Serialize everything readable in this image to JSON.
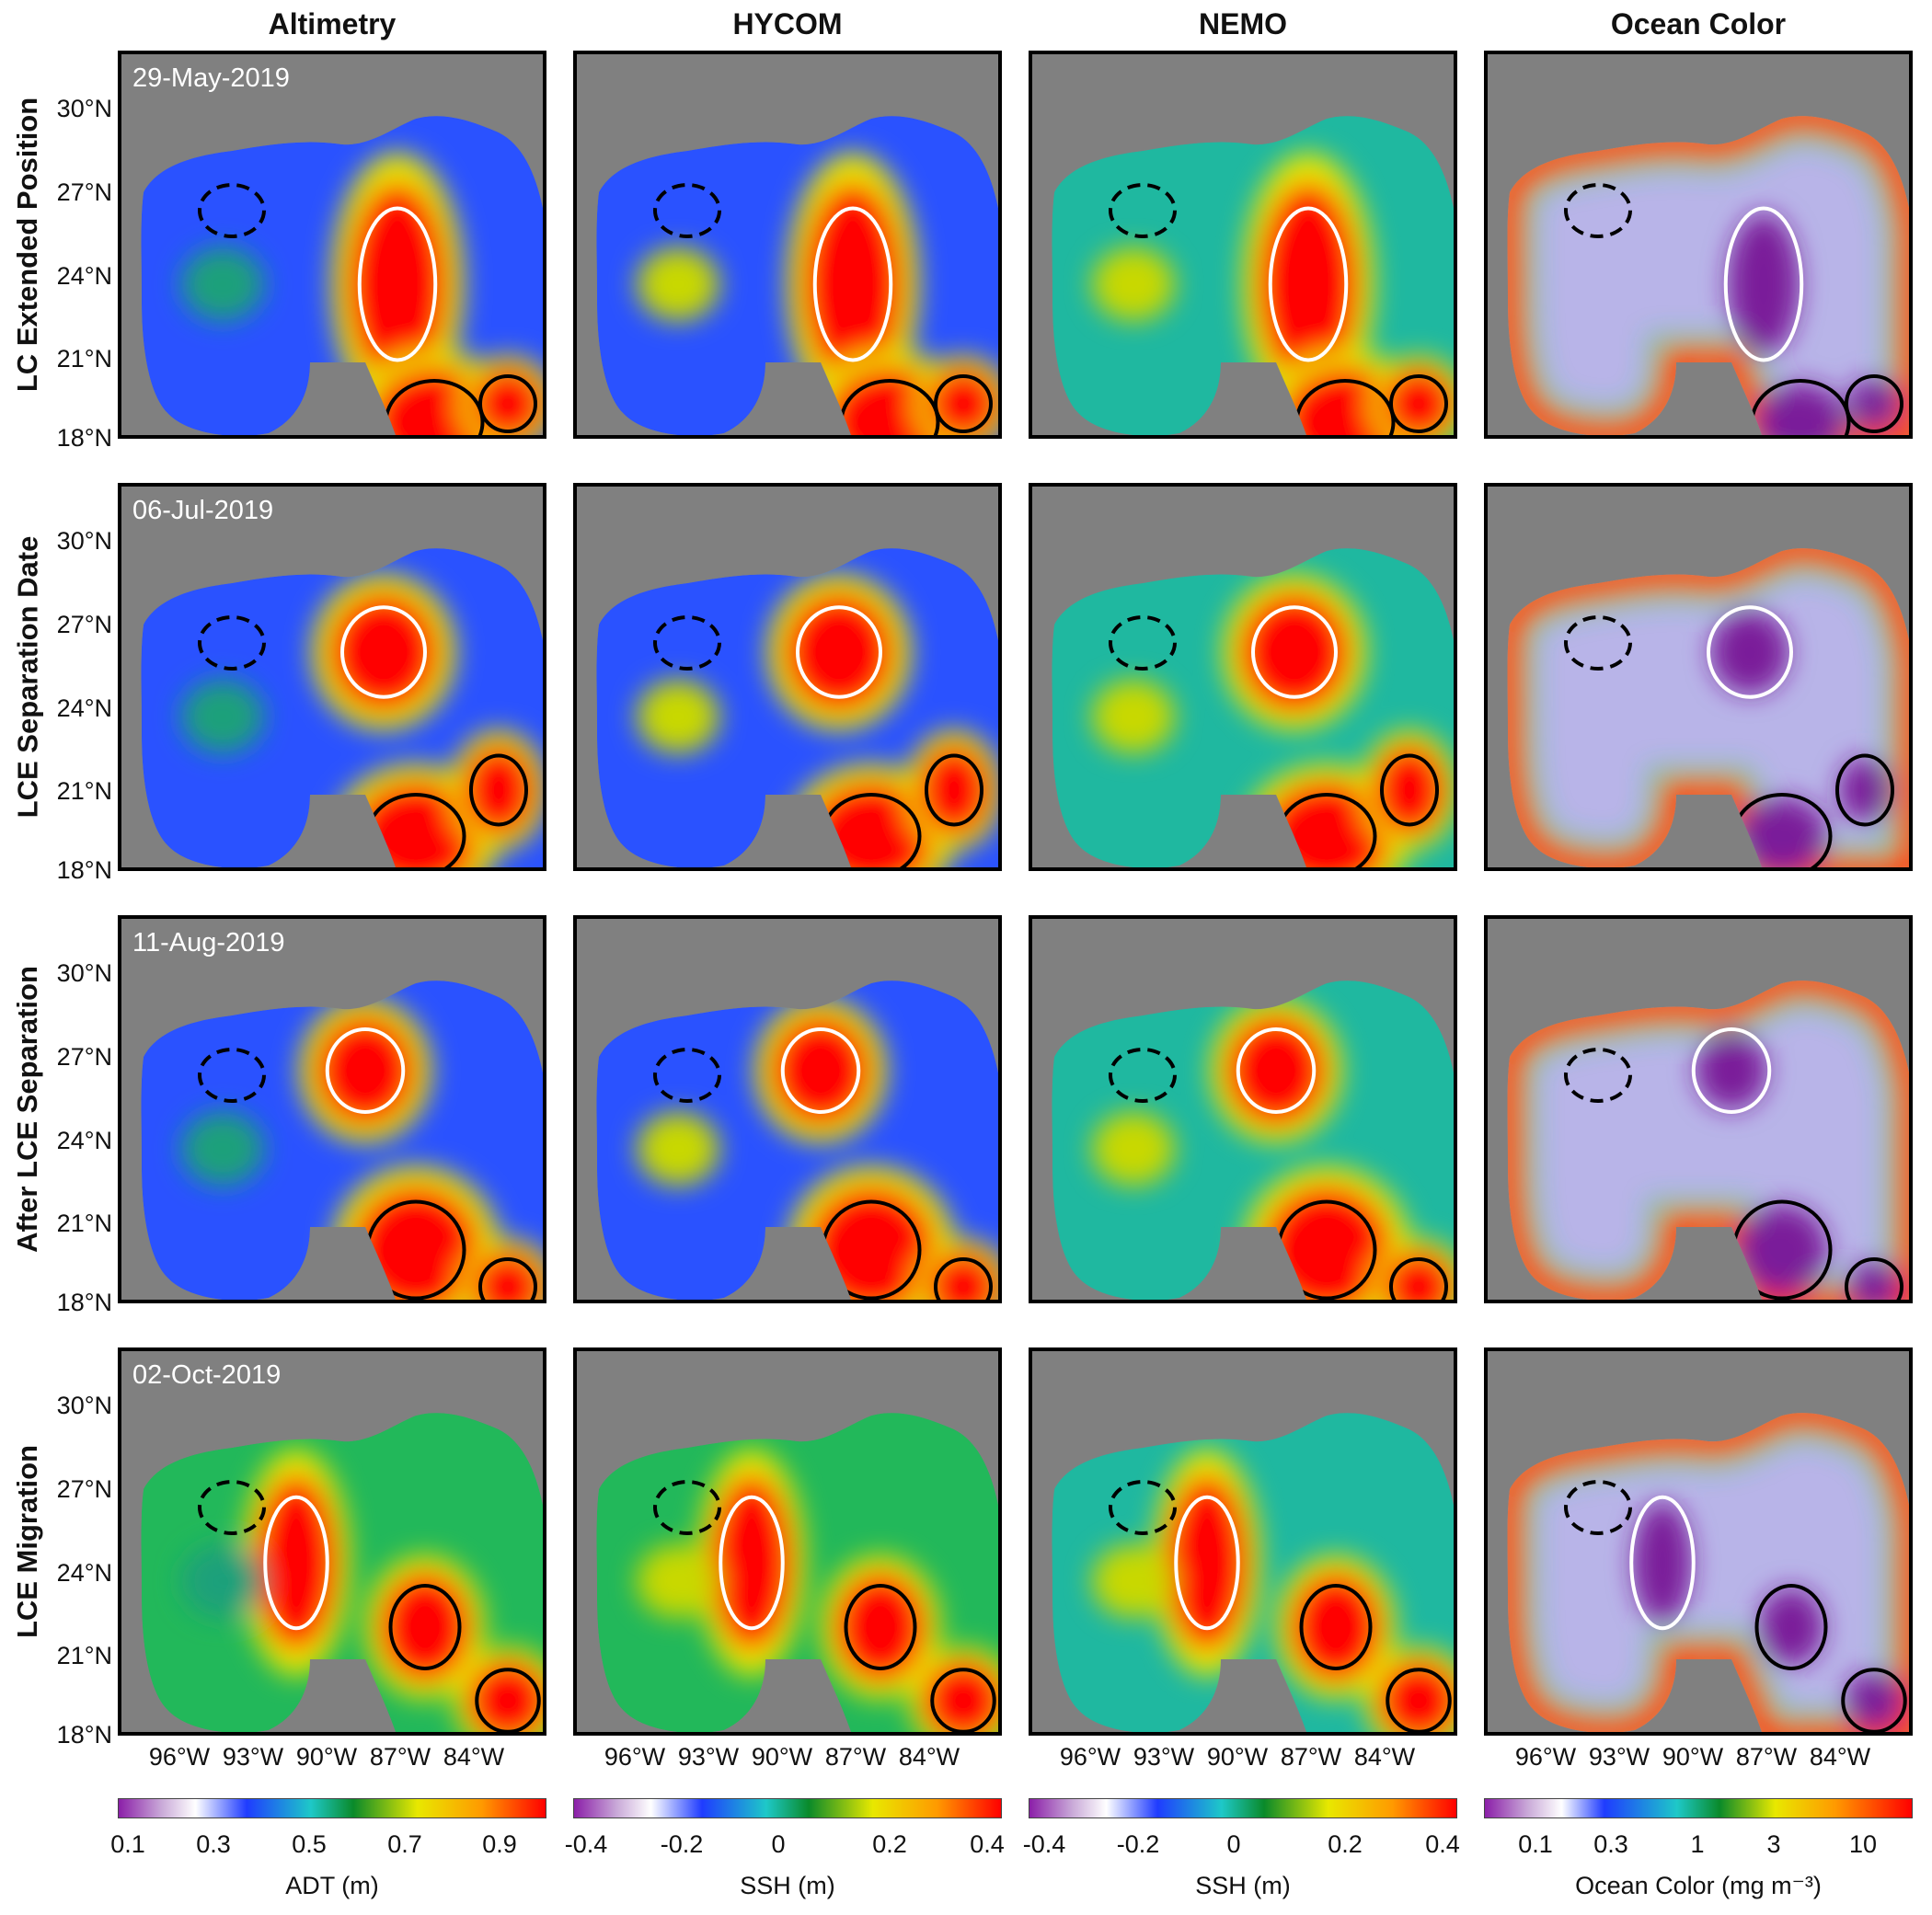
{
  "columns": [
    "Altimetry",
    "HYCOM",
    "NEMO",
    "Ocean Color"
  ],
  "rows": [
    {
      "label": "LC Extended Position",
      "date": "29-May-2019"
    },
    {
      "label": "LCE Separation Date",
      "date": "06-Jul-2019"
    },
    {
      "label": "After LCE Separation",
      "date": "11-Aug-2019"
    },
    {
      "label": "LCE Migration",
      "date": "02-Oct-2019"
    }
  ],
  "lat_ticks": [
    "30°N",
    "27°N",
    "24°N",
    "21°N",
    "18°N"
  ],
  "lon_ticks": [
    "96°W",
    "93°W",
    "90°W",
    "87°W",
    "84°W"
  ],
  "colorbars": [
    {
      "ticks": [
        "0.1",
        "0.3",
        "0.5",
        "0.7",
        "0.9"
      ],
      "label": "ADT (m)"
    },
    {
      "ticks": [
        "-0.4",
        "-0.2",
        "0",
        "0.2",
        "0.4"
      ],
      "label": "SSH (m)"
    },
    {
      "ticks": [
        "-0.4",
        "-0.2",
        "0",
        "0.2",
        "0.4"
      ],
      "label": "SSH (m)"
    },
    {
      "ticks": [
        "0.1",
        "0.3",
        "1",
        "3",
        "10"
      ],
      "label": "Ocean Color (mg m⁻³)"
    }
  ],
  "colors": {
    "land": "#808080",
    "colormap": [
      "#8b1fa8",
      "#c9a9d8",
      "#ffffff",
      "#1f3cff",
      "#1ec8c8",
      "#0a8a2a",
      "#e8e800",
      "#ff9a00",
      "#ff0000"
    ],
    "cold_core_contour": "#000000",
    "warm_core_contour": "#000000",
    "loop_current_contour": "#ffffff"
  }
}
